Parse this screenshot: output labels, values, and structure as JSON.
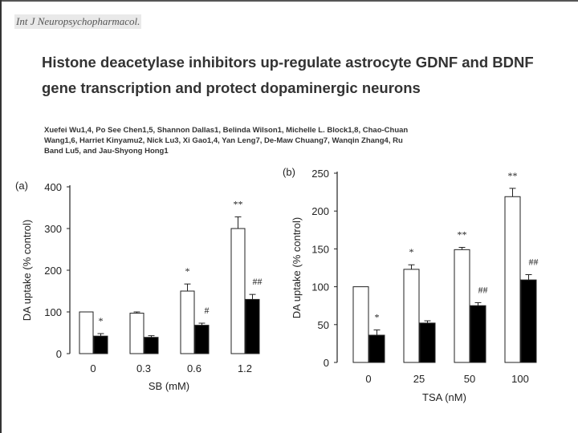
{
  "header": {
    "journal": "Int J Neuropsychopharmacol.",
    "title": "Histone deacetylase inhibitors up-regulate astrocyte GDNF and BDNF gene transcription and protect dopaminergic neurons",
    "authors": "Xuefei Wu1,4, Po See Chen1,5, Shannon Dallas1, Belinda Wilson1, Michelle L. Block1,8, Chao-Chuan Wang1,6, Harriet Kinyamu2, Nick Lu3, Xi Gao1,4, Yan Leng7, De-Maw Chuang7, Wanqin Zhang4, Ru Band Lu5, and Jau-Shyong Hong1"
  },
  "colors": {
    "control_bar": "#ffffff",
    "treated_bar": "#000000",
    "axis": "#222222"
  },
  "chart_data": [
    {
      "type": "bar",
      "panel_label": "(a)",
      "categories": [
        "0",
        "0.3",
        "0.6",
        "1.2"
      ],
      "xlabel": "SB (mM)",
      "ylabel": "DA uptake (% control)",
      "ylim": [
        0,
        400
      ],
      "yticks": [
        0,
        100,
        200,
        300,
        400
      ],
      "series": [
        {
          "values": [
            100,
            97,
            150,
            300
          ],
          "errors": [
            0,
            3,
            17,
            28
          ],
          "color": "#ffffff"
        },
        {
          "values": [
            42,
            39,
            68,
            130
          ],
          "errors": [
            6,
            4,
            5,
            12
          ],
          "color": "#000000"
        }
      ],
      "annotations": [
        {
          "category": 0,
          "series": 1,
          "text": "*"
        },
        {
          "category": 2,
          "series": 0,
          "text": "*"
        },
        {
          "category": 2,
          "series": 1,
          "text": "#"
        },
        {
          "category": 3,
          "series": 0,
          "text": "**"
        },
        {
          "category": 3,
          "series": 1,
          "text": "##"
        }
      ]
    },
    {
      "type": "bar",
      "panel_label": "(b)",
      "categories": [
        "0",
        "25",
        "50",
        "100"
      ],
      "xlabel": "TSA (nM)",
      "ylabel": "DA uptake (% control)",
      "ylim": [
        0,
        250
      ],
      "yticks": [
        0,
        50,
        100,
        150,
        200,
        250
      ],
      "series": [
        {
          "values": [
            100,
            123,
            149,
            219
          ],
          "errors": [
            0,
            6,
            3,
            11
          ],
          "color": "#ffffff"
        },
        {
          "values": [
            36,
            52,
            75,
            109
          ],
          "errors": [
            7,
            3,
            4,
            7
          ],
          "color": "#000000"
        }
      ],
      "annotations": [
        {
          "category": 0,
          "series": 1,
          "text": "*"
        },
        {
          "category": 1,
          "series": 0,
          "text": "*"
        },
        {
          "category": 2,
          "series": 0,
          "text": "**"
        },
        {
          "category": 2,
          "series": 1,
          "text": "##"
        },
        {
          "category": 3,
          "series": 0,
          "text": "**"
        },
        {
          "category": 3,
          "series": 1,
          "text": "##"
        }
      ]
    }
  ]
}
